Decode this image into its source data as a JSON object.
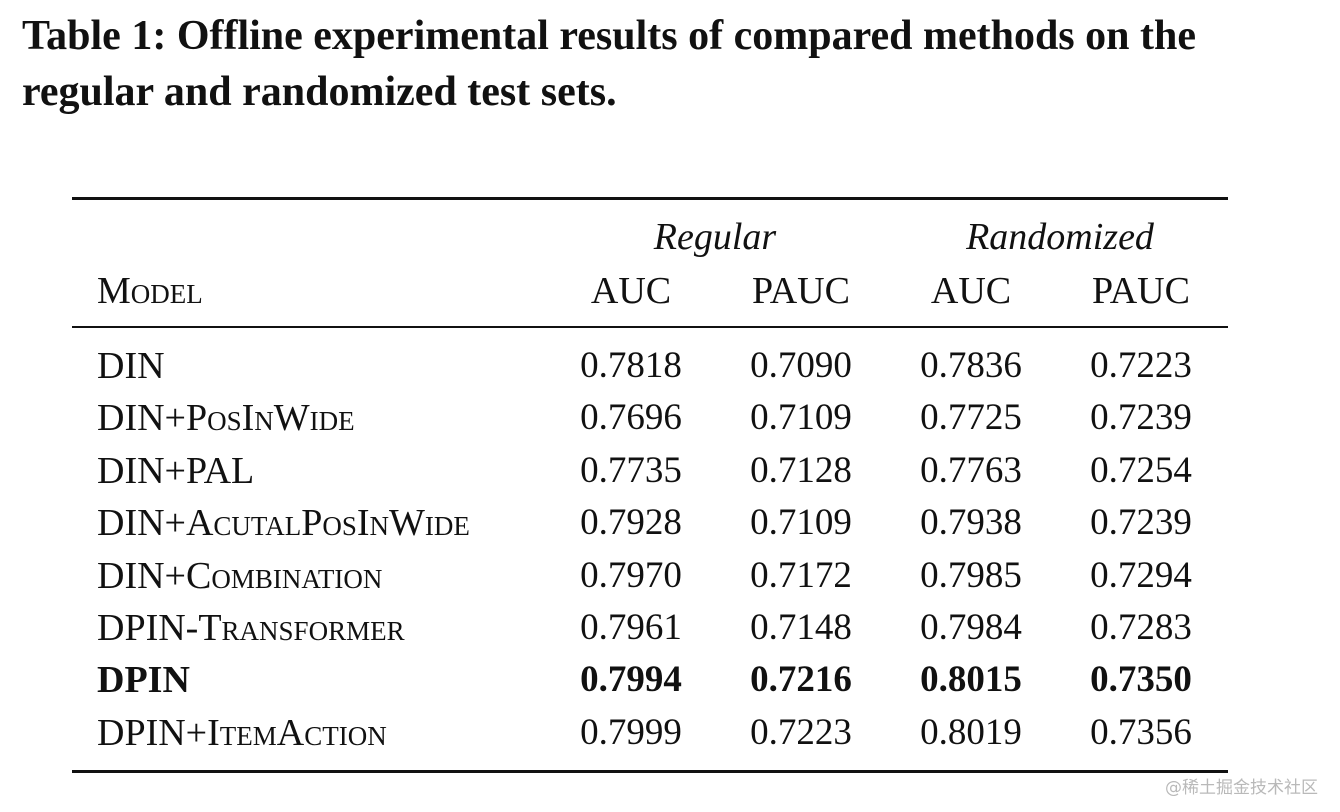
{
  "caption": "Table 1: Offline experimental results of compared methods on the regular and randomized test sets.",
  "table": {
    "groups": [
      "Regular",
      "Randomized"
    ],
    "model_header": "Model",
    "columns": [
      "AUC",
      "PAUC",
      "AUC",
      "PAUC"
    ],
    "rows": [
      {
        "base": "DIN",
        "suffix": "",
        "values": [
          "0.7818",
          "0.7090",
          "0.7836",
          "0.7223"
        ],
        "bold": false
      },
      {
        "base": "DIN+",
        "suffix": "PosInWide",
        "values": [
          "0.7696",
          "0.7109",
          "0.7725",
          "0.7239"
        ],
        "bold": false
      },
      {
        "base": "DIN+PAL",
        "suffix": "",
        "values": [
          "0.7735",
          "0.7128",
          "0.7763",
          "0.7254"
        ],
        "bold": false
      },
      {
        "base": "DIN+",
        "suffix": "AcutalPosInWide",
        "values": [
          "0.7928",
          "0.7109",
          "0.7938",
          "0.7239"
        ],
        "bold": false
      },
      {
        "base": "DIN+",
        "suffix": "Combination",
        "values": [
          "0.7970",
          "0.7172",
          "0.7985",
          "0.7294"
        ],
        "bold": false
      },
      {
        "base": "DPIN-",
        "suffix": "Transformer",
        "values": [
          "0.7961",
          "0.7148",
          "0.7984",
          "0.7283"
        ],
        "bold": false
      },
      {
        "base": "DPIN",
        "suffix": "",
        "values": [
          "0.7994",
          "0.7216",
          "0.8015",
          "0.7350"
        ],
        "bold": true
      },
      {
        "base": "DPIN+",
        "suffix": "ItemAction",
        "values": [
          "0.7999",
          "0.7223",
          "0.8019",
          "0.7356"
        ],
        "bold": false
      }
    ]
  },
  "watermark": "@稀土掘金技术社区"
}
